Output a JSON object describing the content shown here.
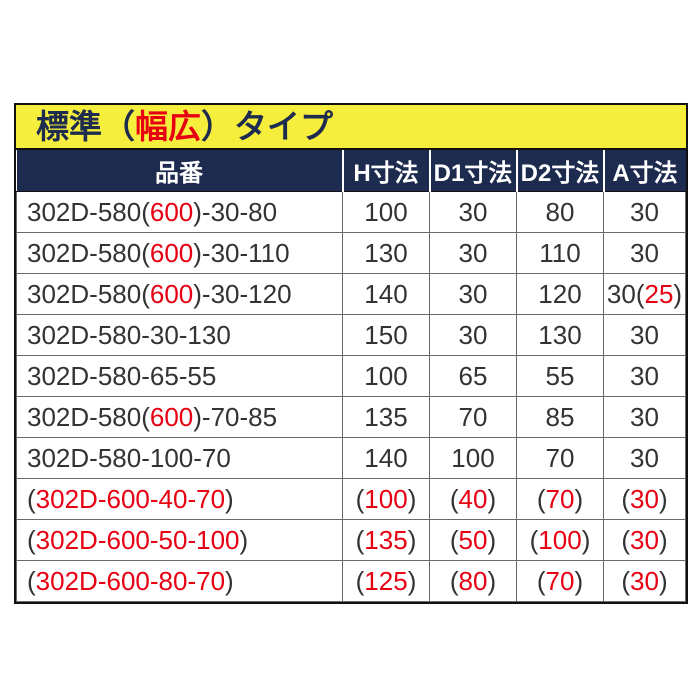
{
  "colors": {
    "banner_yellow": "#f6ee3d",
    "header_navy": "#1d2b4f",
    "accent_red": "#e60012",
    "body_text": "#333333"
  },
  "banner": {
    "segments": [
      {
        "t": "標準（",
        "c": "navy"
      },
      {
        "t": "幅広",
        "c": "red"
      },
      {
        "t": "）タイプ",
        "c": "navy"
      }
    ]
  },
  "table": {
    "columns": [
      "品番",
      "H寸法",
      "D1寸法",
      "D2寸法",
      "A寸法"
    ],
    "rows": [
      {
        "cells": [
          [
            {
              "t": "302D-580(",
              "c": "dark"
            },
            {
              "t": "600",
              "c": "red"
            },
            {
              "t": ")-30-80",
              "c": "dark"
            }
          ],
          [
            {
              "t": "100",
              "c": "dark"
            }
          ],
          [
            {
              "t": "30",
              "c": "dark"
            }
          ],
          [
            {
              "t": "80",
              "c": "dark"
            }
          ],
          [
            {
              "t": "30",
              "c": "dark"
            }
          ]
        ]
      },
      {
        "cells": [
          [
            {
              "t": "302D-580(",
              "c": "dark"
            },
            {
              "t": "600",
              "c": "red"
            },
            {
              "t": ")-30-110",
              "c": "dark"
            }
          ],
          [
            {
              "t": "130",
              "c": "dark"
            }
          ],
          [
            {
              "t": "30",
              "c": "dark"
            }
          ],
          [
            {
              "t": "110",
              "c": "dark"
            }
          ],
          [
            {
              "t": "30",
              "c": "dark"
            }
          ]
        ]
      },
      {
        "cells": [
          [
            {
              "t": "302D-580(",
              "c": "dark"
            },
            {
              "t": "600",
              "c": "red"
            },
            {
              "t": ")-30-120",
              "c": "dark"
            }
          ],
          [
            {
              "t": "140",
              "c": "dark"
            }
          ],
          [
            {
              "t": "30",
              "c": "dark"
            }
          ],
          [
            {
              "t": "120",
              "c": "dark"
            }
          ],
          [
            {
              "t": "30(",
              "c": "dark"
            },
            {
              "t": "25",
              "c": "red"
            },
            {
              "t": ")",
              "c": "dark"
            }
          ]
        ]
      },
      {
        "cells": [
          [
            {
              "t": "302D-580-30-130",
              "c": "dark"
            }
          ],
          [
            {
              "t": "150",
              "c": "dark"
            }
          ],
          [
            {
              "t": "30",
              "c": "dark"
            }
          ],
          [
            {
              "t": "130",
              "c": "dark"
            }
          ],
          [
            {
              "t": "30",
              "c": "dark"
            }
          ]
        ]
      },
      {
        "cells": [
          [
            {
              "t": "302D-580-65-55",
              "c": "dark"
            }
          ],
          [
            {
              "t": "100",
              "c": "dark"
            }
          ],
          [
            {
              "t": "65",
              "c": "dark"
            }
          ],
          [
            {
              "t": "55",
              "c": "dark"
            }
          ],
          [
            {
              "t": "30",
              "c": "dark"
            }
          ]
        ]
      },
      {
        "cells": [
          [
            {
              "t": "302D-580(",
              "c": "dark"
            },
            {
              "t": "600",
              "c": "red"
            },
            {
              "t": ")-70-85",
              "c": "dark"
            }
          ],
          [
            {
              "t": "135",
              "c": "dark"
            }
          ],
          [
            {
              "t": "70",
              "c": "dark"
            }
          ],
          [
            {
              "t": "85",
              "c": "dark"
            }
          ],
          [
            {
              "t": "30",
              "c": "dark"
            }
          ]
        ]
      },
      {
        "cells": [
          [
            {
              "t": "302D-580-100-70",
              "c": "dark"
            }
          ],
          [
            {
              "t": "140",
              "c": "dark"
            }
          ],
          [
            {
              "t": "100",
              "c": "dark"
            }
          ],
          [
            {
              "t": "70",
              "c": "dark"
            }
          ],
          [
            {
              "t": "30",
              "c": "dark"
            }
          ]
        ]
      },
      {
        "cells": [
          [
            {
              "t": "(",
              "c": "dark"
            },
            {
              "t": "302D-600-40-70",
              "c": "red"
            },
            {
              "t": ")",
              "c": "dark"
            }
          ],
          [
            {
              "t": "(",
              "c": "dark"
            },
            {
              "t": "100",
              "c": "red"
            },
            {
              "t": ")",
              "c": "dark"
            }
          ],
          [
            {
              "t": "(",
              "c": "dark"
            },
            {
              "t": "40",
              "c": "red"
            },
            {
              "t": ")",
              "c": "dark"
            }
          ],
          [
            {
              "t": "(",
              "c": "dark"
            },
            {
              "t": "70",
              "c": "red"
            },
            {
              "t": ")",
              "c": "dark"
            }
          ],
          [
            {
              "t": "(",
              "c": "dark"
            },
            {
              "t": "30",
              "c": "red"
            },
            {
              "t": ")",
              "c": "dark"
            }
          ]
        ]
      },
      {
        "cells": [
          [
            {
              "t": "(",
              "c": "dark"
            },
            {
              "t": "302D-600-50-100",
              "c": "red"
            },
            {
              "t": ")",
              "c": "dark"
            }
          ],
          [
            {
              "t": "(",
              "c": "dark"
            },
            {
              "t": "135",
              "c": "red"
            },
            {
              "t": ")",
              "c": "dark"
            }
          ],
          [
            {
              "t": "(",
              "c": "dark"
            },
            {
              "t": "50",
              "c": "red"
            },
            {
              "t": ")",
              "c": "dark"
            }
          ],
          [
            {
              "t": "(",
              "c": "dark"
            },
            {
              "t": "100",
              "c": "red"
            },
            {
              "t": ")",
              "c": "dark"
            }
          ],
          [
            {
              "t": "(",
              "c": "dark"
            },
            {
              "t": "30",
              "c": "red"
            },
            {
              "t": ")",
              "c": "dark"
            }
          ]
        ]
      },
      {
        "cells": [
          [
            {
              "t": "(",
              "c": "dark"
            },
            {
              "t": "302D-600-80-70",
              "c": "red"
            },
            {
              "t": ")",
              "c": "dark"
            }
          ],
          [
            {
              "t": "(",
              "c": "dark"
            },
            {
              "t": "125",
              "c": "red"
            },
            {
              "t": ")",
              "c": "dark"
            }
          ],
          [
            {
              "t": "(",
              "c": "dark"
            },
            {
              "t": "80",
              "c": "red"
            },
            {
              "t": ")",
              "c": "dark"
            }
          ],
          [
            {
              "t": "(",
              "c": "dark"
            },
            {
              "t": "70",
              "c": "red"
            },
            {
              "t": ")",
              "c": "dark"
            }
          ],
          [
            {
              "t": "(",
              "c": "dark"
            },
            {
              "t": "30",
              "c": "red"
            },
            {
              "t": ")",
              "c": "dark"
            }
          ]
        ]
      }
    ]
  }
}
